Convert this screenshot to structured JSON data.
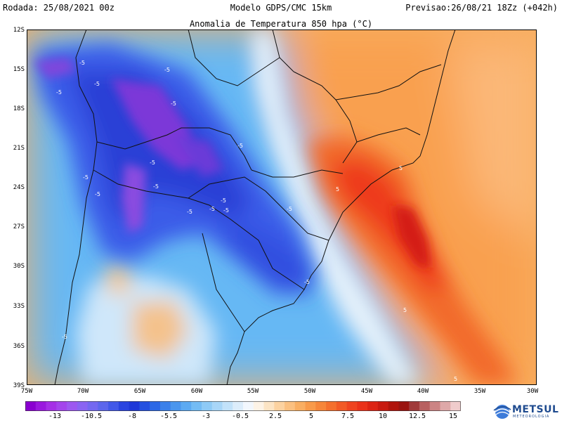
{
  "header": {
    "run": "Rodada: 25/08/2021 00z",
    "model": "Modelo GDPS/CMC 15km",
    "forecast": "Previsao:26/08/21 18Zz (+042h)"
  },
  "map": {
    "title": "Anomalia de Temperatura 850 hpa (°C)",
    "lat_labels": [
      "12S",
      "15S",
      "18S",
      "21S",
      "24S",
      "27S",
      "30S",
      "33S",
      "36S",
      "39S"
    ],
    "lon_labels": [
      "75W",
      "70W",
      "65W",
      "60W",
      "55W",
      "50W",
      "45W",
      "40W",
      "35W",
      "30W"
    ],
    "lat_range": [
      -39,
      -12
    ],
    "lon_range": [
      -75,
      -30
    ],
    "contour_labels": [
      "-5",
      "-5",
      "-5",
      "-5",
      "-5",
      "-5",
      "-5",
      "-5",
      "-5",
      "-5",
      "-5",
      "-5",
      "-5",
      "-5",
      "-5",
      "-5",
      "-5",
      "5",
      "5",
      "5",
      "5"
    ]
  },
  "colorbar": {
    "tick_labels": [
      "-13",
      "-10.5",
      "-8",
      "-5.5",
      "-3",
      "-0.5",
      "2.5",
      "5",
      "7.5",
      "10",
      "12.5",
      "15"
    ],
    "range": [
      -15,
      16
    ]
  },
  "colors": {
    "strong_cold": "#8a2be2",
    "cold": "#2a48e6",
    "cool": "#5ab4f5",
    "neutral": "#e8f4ff",
    "warm": "#f9a04a",
    "hot": "#f03218",
    "extreme": "#a00000"
  },
  "logo": {
    "name": "METSUL",
    "sub": "METEOROLOGIA"
  }
}
